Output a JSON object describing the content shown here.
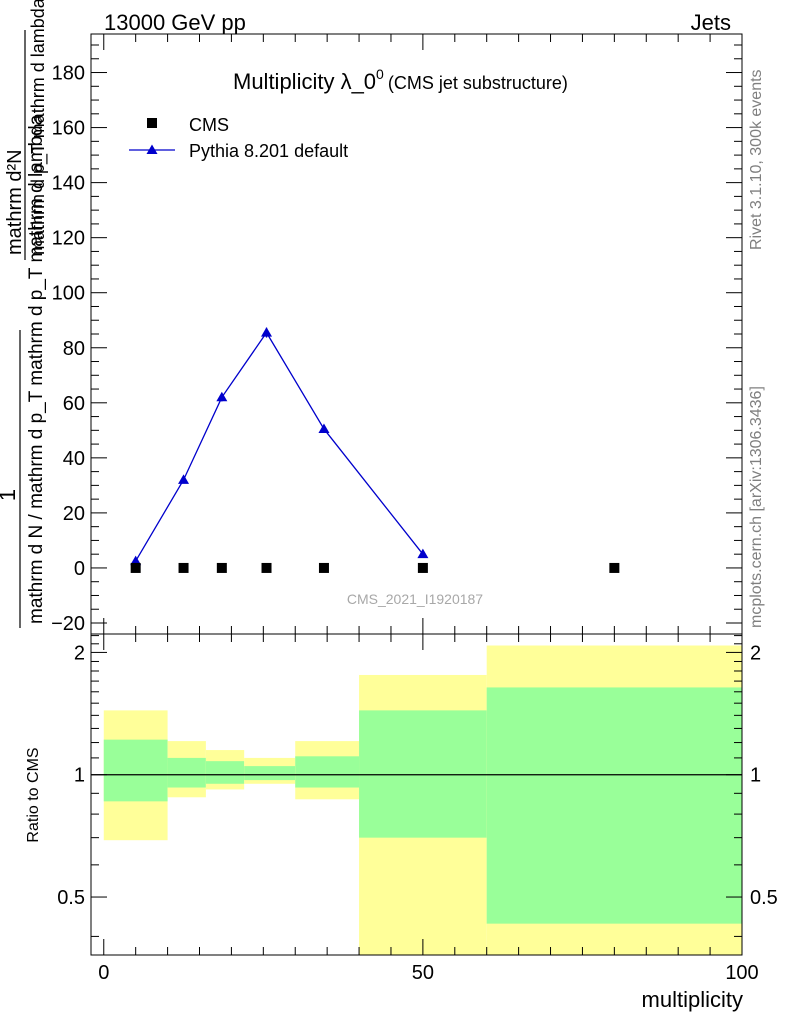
{
  "header": {
    "left": "13000 GeV pp",
    "right": "Jets"
  },
  "title": {
    "main": "Multiplicity λ_0",
    "superscript": "0",
    "sub": "(CMS jet substructure)"
  },
  "side_labels": {
    "rivet": "Rivet 3.1.10,  300k events",
    "mcplots": "mcplots.cern.ch [arXiv:1306.3436]"
  },
  "watermark": "CMS_2021_I1920187",
  "chart_data": [
    {
      "type": "scatter",
      "ylabel": {
        "numerator": "1",
        "denominator": "mathrm d N / mathrm d p_T mathrm d p_T mathrm d lambda",
        "numerator_top": "mathrm d²N",
        "top_denominator": "mathrm d p_T mathrm d lambda"
      },
      "xlim": [
        -2,
        100
      ],
      "ylim": [
        -24,
        194
      ],
      "yticks": [
        -20,
        0,
        20,
        40,
        60,
        80,
        100,
        120,
        140,
        160,
        180
      ],
      "legend": "top-left",
      "series": [
        {
          "name": "CMS",
          "color": "#000000",
          "marker": "square",
          "x": [
            5,
            12.5,
            18.5,
            25.5,
            34.5,
            50,
            80
          ],
          "y": [
            0,
            0,
            0,
            0,
            0,
            0,
            0
          ]
        },
        {
          "name": "Pythia 8.201 default",
          "color": "#0000cc",
          "marker": "triangle",
          "x": [
            5,
            12.5,
            18.5,
            25.5,
            34.5,
            50
          ],
          "y": [
            2.5,
            32,
            62,
            85.5,
            50.5,
            5
          ],
          "yerr": [
            0.3,
            0.8,
            1.5,
            1.8,
            1.0,
            0.3
          ]
        }
      ]
    },
    {
      "type": "area",
      "ylabel": "Ratio to CMS",
      "xlabel": "multiplicity",
      "xlim": [
        -2,
        100
      ],
      "ylim": [
        0.36,
        2.22
      ],
      "yticks": [
        0.5,
        1,
        2
      ],
      "xticks": [
        0,
        50,
        100
      ],
      "reference": 1,
      "bins": [
        {
          "x0": 0,
          "x1": 10,
          "green": [
            0.86,
            1.22
          ],
          "yellow": [
            0.69,
            1.44
          ]
        },
        {
          "x0": 10,
          "x1": 16,
          "green": [
            0.93,
            1.1
          ],
          "yellow": [
            0.88,
            1.21
          ]
        },
        {
          "x0": 16,
          "x1": 22,
          "green": [
            0.95,
            1.08
          ],
          "yellow": [
            0.92,
            1.15
          ]
        },
        {
          "x0": 22,
          "x1": 30,
          "green": [
            0.97,
            1.05
          ],
          "yellow": [
            0.95,
            1.1
          ]
        },
        {
          "x0": 30,
          "x1": 40,
          "green": [
            0.93,
            1.11
          ],
          "yellow": [
            0.87,
            1.21
          ]
        },
        {
          "x0": 40,
          "x1": 60,
          "green": [
            0.7,
            1.44
          ],
          "yellow": [
            0.36,
            1.76
          ]
        },
        {
          "x0": 60,
          "x1": 100,
          "green": [
            0.43,
            1.64
          ],
          "yellow": [
            0.36,
            2.08
          ]
        }
      ],
      "colors": {
        "green": "#99ff99",
        "yellow": "#ffff99"
      }
    }
  ]
}
